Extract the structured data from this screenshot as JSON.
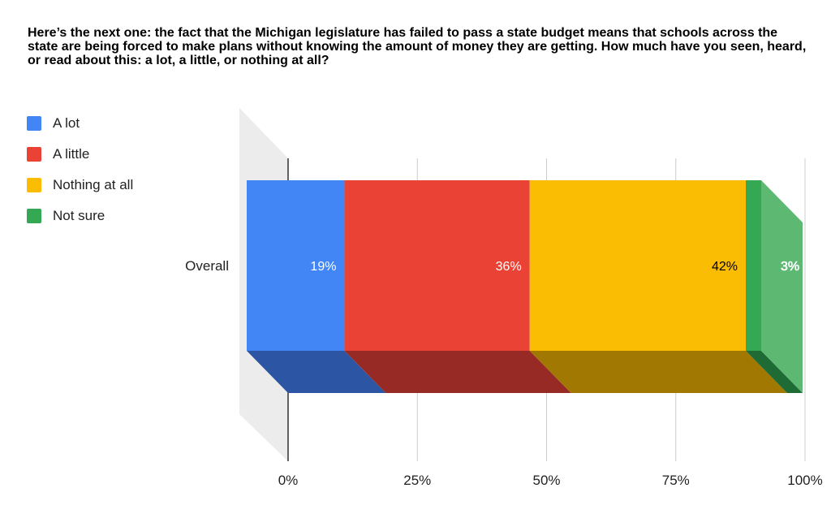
{
  "title": "Here’s the next one: the fact that the Michigan legislature has failed to pass a state budget means that schools across the state are being forced to make plans without knowing the amount of money they are getting. How much have you seen, heard, or read about this: a lot, a little, or nothing at all?",
  "legend": [
    {
      "label": "A lot",
      "color": "#4285F4"
    },
    {
      "label": "A little",
      "color": "#EA4335"
    },
    {
      "label": "Nothing at all",
      "color": "#FBBC04"
    },
    {
      "label": "Not sure",
      "color": "#34A853"
    }
  ],
  "chart_data": {
    "type": "bar",
    "orientation": "horizontal",
    "stacked": true,
    "style": "3d",
    "categories": [
      "Overall"
    ],
    "series": [
      {
        "name": "A lot",
        "values": [
          19
        ],
        "color": "#4285F4",
        "side_color": "#2C56A3",
        "label": "19%",
        "label_color": "#ffffff"
      },
      {
        "name": "A little",
        "values": [
          36
        ],
        "color": "#EA4335",
        "side_color": "#972A24",
        "label": "36%",
        "label_color": "#ffffff"
      },
      {
        "name": "Nothing at all",
        "values": [
          42
        ],
        "color": "#FBBC04",
        "side_color": "#A07802",
        "label": "42%",
        "label_color": "#000000"
      },
      {
        "name": "Not sure",
        "values": [
          3
        ],
        "color": "#34A853",
        "side_color": "#1F6B35",
        "label": "3%",
        "label_color": "#ffffff"
      }
    ],
    "xlim": [
      0,
      100
    ],
    "x_ticks": [
      "0%",
      "25%",
      "50%",
      "75%",
      "100%"
    ],
    "grid": true,
    "legend_position": "left"
  }
}
